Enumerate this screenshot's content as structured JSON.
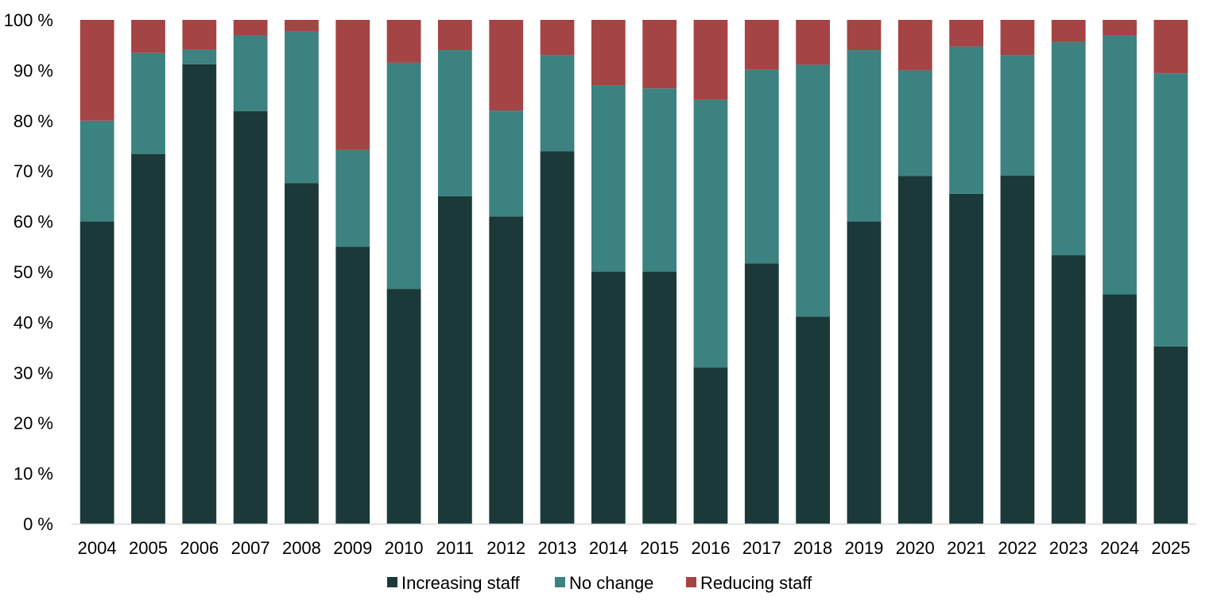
{
  "chart_data": {
    "type": "bar",
    "stacked": true,
    "percent_stacked": true,
    "title": "",
    "xlabel": "",
    "ylabel": "",
    "categories": [
      "2004",
      "2005",
      "2006",
      "2007",
      "2008",
      "2009",
      "2010",
      "2011",
      "2012",
      "2013",
      "2014",
      "2015",
      "2016",
      "2017",
      "2018",
      "2019",
      "2020",
      "2021",
      "2022",
      "2023",
      "2024",
      "2025"
    ],
    "series": [
      {
        "name": "Increasing staff",
        "color": "#1b3939",
        "values": [
          60,
          73.4,
          91.2,
          81.9,
          67.6,
          55,
          46.6,
          65,
          61,
          73.9,
          50,
          50,
          31,
          51.7,
          41.1,
          60,
          69,
          65.5,
          69.1,
          53.3,
          45.5,
          35.2
        ]
      },
      {
        "name": "No change",
        "color": "#3b8280",
        "values": [
          20,
          20,
          2.9,
          15.1,
          30.2,
          19.2,
          44.9,
          29,
          21,
          19.1,
          37,
          36.4,
          53.1,
          38.4,
          50,
          34,
          21,
          29.2,
          23.9,
          42.3,
          51.5,
          54.2
        ]
      },
      {
        "name": "Reducing staff",
        "color": "#a44444",
        "values": [
          20,
          6.6,
          5.9,
          3,
          2.2,
          25.8,
          8.5,
          6,
          18,
          7,
          13,
          13.6,
          15.9,
          9.9,
          8.9,
          6,
          10,
          5.3,
          7,
          4.4,
          3,
          10.6
        ]
      }
    ],
    "ylim": [
      0,
      100
    ],
    "yticks": [
      0,
      10,
      20,
      30,
      40,
      50,
      60,
      70,
      80,
      90,
      100
    ],
    "ytick_labels": [
      "0 %",
      "10 %",
      "20 %",
      "30 %",
      "40 %",
      "50 %",
      "60 %",
      "70 %",
      "80 %",
      "90 %",
      "100 %"
    ],
    "grid": false,
    "legend": {
      "position": "bottom",
      "entries": [
        "Increasing staff",
        "No change",
        "Reducing staff"
      ]
    },
    "axis_color": "#d9d9d9"
  }
}
